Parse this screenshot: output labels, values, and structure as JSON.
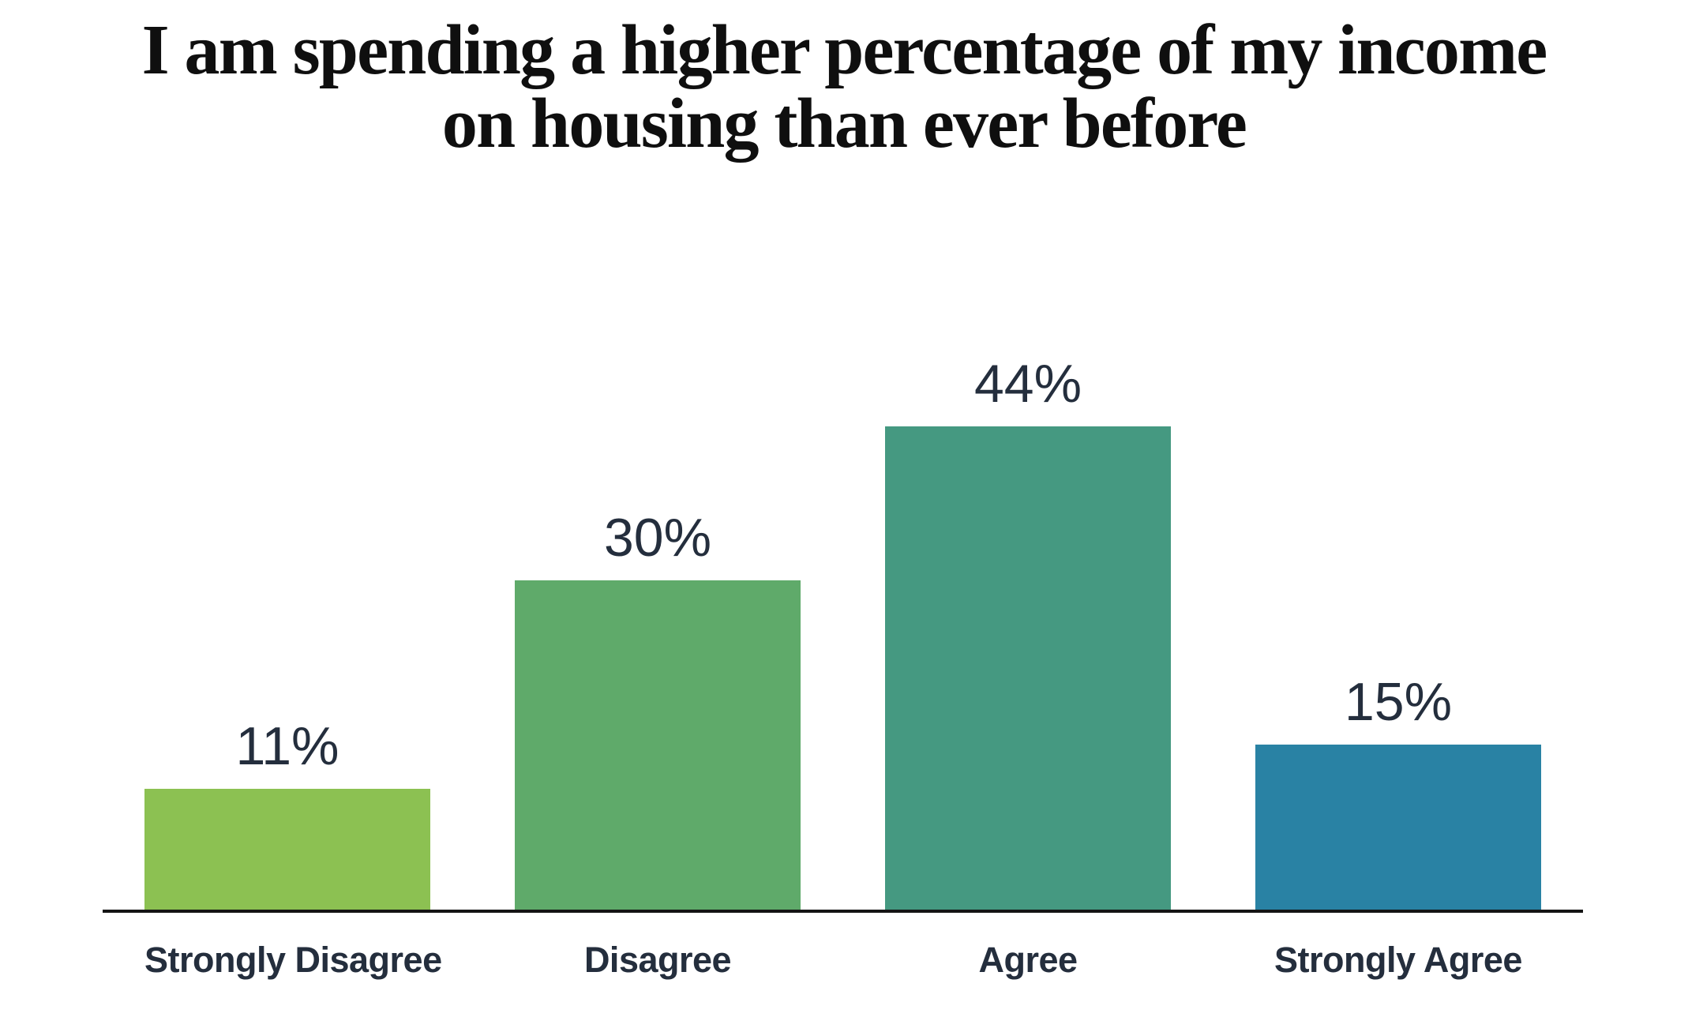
{
  "title_lines": [
    "I am spending a higher percentage of my income",
    "on housing than ever before"
  ],
  "chart_data": {
    "type": "bar",
    "title": "I am spending a higher percentage of my income on housing than ever before",
    "categories": [
      "Strongly Disagree",
      "Disagree",
      "Agree",
      "Strongly Agree"
    ],
    "values": [
      11,
      30,
      44,
      15
    ],
    "value_labels": [
      "11%",
      "30%",
      "44%",
      "15%"
    ],
    "xlabel": "",
    "ylabel": "",
    "ylim": [
      0,
      50
    ],
    "grid": false,
    "legend": false,
    "bar_colors": [
      "#8CC152",
      "#5FAA6A",
      "#459981",
      "#2982A4"
    ],
    "text_color": "#242E3D",
    "title_color": "#0F0F0F",
    "axis_line_color": "#141414"
  }
}
